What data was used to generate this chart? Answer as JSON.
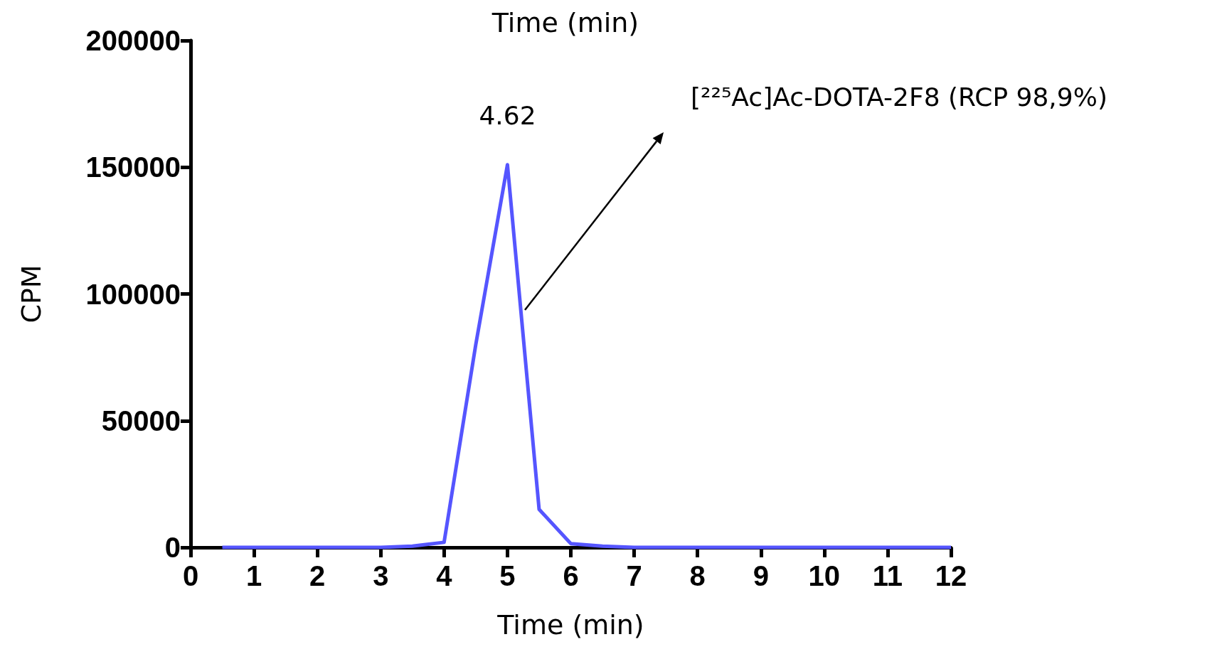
{
  "chart_data": {
    "type": "line",
    "title": "Time (min)",
    "xlabel": "Time (min)",
    "ylabel": "CPM",
    "x": [
      0.5,
      1,
      1.5,
      2,
      2.5,
      3,
      3.5,
      4,
      4.5,
      5,
      5.5,
      6,
      6.5,
      7,
      7.5,
      8,
      8.5,
      9,
      9.5,
      10,
      10.5,
      11,
      11.5,
      12
    ],
    "series": [
      {
        "color": "#5555ff",
        "values": [
          0,
          0,
          0,
          0,
          0,
          0,
          500,
          2000,
          80000,
          151000,
          15000,
          1500,
          500,
          0,
          0,
          0,
          0,
          0,
          0,
          0,
          0,
          0,
          0,
          0
        ]
      }
    ],
    "xlim": [
      0,
      12
    ],
    "xticks": [
      0,
      1,
      2,
      3,
      4,
      5,
      6,
      7,
      8,
      9,
      10,
      11,
      12
    ],
    "ylim": [
      0,
      200000
    ],
    "yticks": [
      0,
      50000,
      100000,
      150000,
      200000
    ],
    "annotations": [
      {
        "text": "4.62",
        "x": 5,
        "y": 151000
      },
      "[²²⁵Ac]Ac-DOTA-2F8 (RCP 98,9%)"
    ],
    "grid": false,
    "marker": "none",
    "line_style": "solid"
  }
}
